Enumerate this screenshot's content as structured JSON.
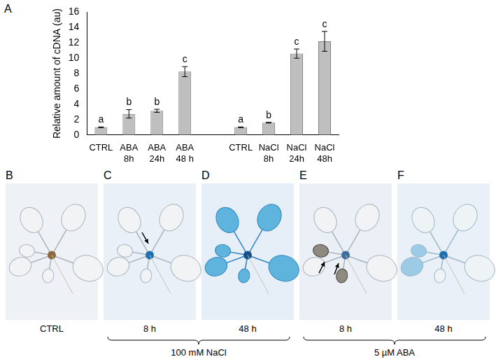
{
  "chart_data": {
    "type": "bar",
    "categories": [
      "CTRL",
      "ABA 8h",
      "ABA 24h",
      "ABA 48 h",
      null,
      "CTRL",
      "NaCl 8h",
      "NaCl 24h",
      "NaCl 48h"
    ],
    "values": [
      1.0,
      2.75,
      3.15,
      8.25,
      null,
      1.0,
      1.6,
      10.6,
      12.2
    ],
    "errors": [
      0.05,
      0.55,
      0.2,
      0.65,
      null,
      0.05,
      0.05,
      0.6,
      1.3
    ],
    "letters": [
      "a",
      "b",
      "b",
      "c",
      null,
      "a",
      "b",
      "c",
      "c"
    ],
    "y_label": "Relative amount of cDNA (au)",
    "color": "#bfbfbf",
    "ylim": [
      0,
      16
    ],
    "yticks": [
      0,
      2,
      4,
      6,
      8,
      10,
      12,
      14,
      16
    ],
    "grid": false
  },
  "panel_label": "A",
  "photos": [
    {
      "label": "B",
      "caption": "CTRL"
    },
    {
      "group": "100 mM NaCl",
      "panels": [
        {
          "label": "C",
          "caption": "8 h"
        },
        {
          "label": "D",
          "caption": "48 h"
        }
      ]
    },
    {
      "group": "5 µM ABA",
      "panels": [
        {
          "label": "E",
          "caption": "8 h"
        },
        {
          "label": "F",
          "caption": "48 h"
        }
      ]
    }
  ]
}
